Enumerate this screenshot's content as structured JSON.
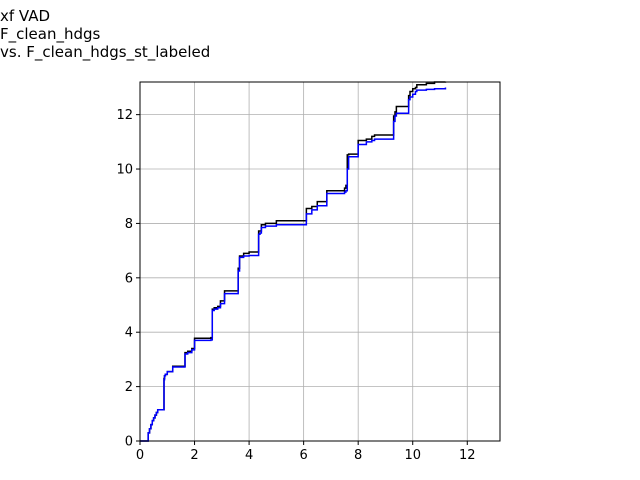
{
  "chart_data": {
    "type": "line",
    "title": [
      "xf VAD",
      "F_clean_hdgs",
      "vs. F_clean_hdgs_st_labeled"
    ],
    "xlabel": "",
    "ylabel": "",
    "xlim": [
      0,
      13.2
    ],
    "ylim": [
      0,
      13.2
    ],
    "xticks": [
      0,
      2,
      4,
      6,
      8,
      10,
      12
    ],
    "yticks": [
      0,
      2,
      4,
      6,
      8,
      10,
      12
    ],
    "xtick_labels": [
      "0",
      "2",
      "4",
      "6",
      "8",
      "10",
      "12"
    ],
    "ytick_labels": [
      "0",
      "2",
      "4",
      "6",
      "8",
      "10",
      "12"
    ],
    "grid": true,
    "legend": false,
    "step": true,
    "series": [
      {
        "color": "#000000",
        "x": [
          0.0,
          0.3,
          0.35,
          0.4,
          0.45,
          0.5,
          0.55,
          0.6,
          0.65,
          0.72,
          0.88,
          0.9,
          0.93,
          1.0,
          1.2,
          1.6,
          1.65,
          1.75,
          1.9,
          2.0,
          2.6,
          2.65,
          2.72,
          2.85,
          2.95,
          3.1,
          3.5,
          3.6,
          3.65,
          3.8,
          4.0,
          4.35,
          4.4,
          4.45,
          4.6,
          5.0,
          6.1,
          6.3,
          6.5,
          6.85,
          7.5,
          7.55,
          7.6,
          7.65,
          8.0,
          8.3,
          8.5,
          8.6,
          9.3,
          9.35,
          9.4,
          9.85,
          9.9,
          10.0,
          10.1,
          10.15,
          10.5,
          10.8,
          11.2
        ],
        "y": [
          0.0,
          0.3,
          0.45,
          0.6,
          0.75,
          0.85,
          0.95,
          1.05,
          1.15,
          1.15,
          2.3,
          2.4,
          2.45,
          2.55,
          2.75,
          2.75,
          3.25,
          3.3,
          3.4,
          3.78,
          3.8,
          4.85,
          4.9,
          4.95,
          5.15,
          5.52,
          5.52,
          6.35,
          6.8,
          6.9,
          6.95,
          7.72,
          7.72,
          7.95,
          8.0,
          8.1,
          8.55,
          8.62,
          8.8,
          9.2,
          9.3,
          9.4,
          10.52,
          10.55,
          11.05,
          11.1,
          11.2,
          11.25,
          11.95,
          12.1,
          12.3,
          12.7,
          12.85,
          12.95,
          13.0,
          13.1,
          13.15,
          13.2,
          13.22
        ]
      },
      {
        "color": "#0000ff",
        "x": [
          0.0,
          0.3,
          0.35,
          0.4,
          0.45,
          0.5,
          0.55,
          0.6,
          0.65,
          0.72,
          0.88,
          0.9,
          0.93,
          1.0,
          1.2,
          1.6,
          1.65,
          1.75,
          1.9,
          2.0,
          2.6,
          2.65,
          2.72,
          2.85,
          2.95,
          3.1,
          3.5,
          3.6,
          3.65,
          3.8,
          4.0,
          4.35,
          4.4,
          4.45,
          4.6,
          5.0,
          6.1,
          6.3,
          6.5,
          6.85,
          7.5,
          7.55,
          7.6,
          7.65,
          8.0,
          8.3,
          8.5,
          8.6,
          9.3,
          9.35,
          9.4,
          9.85,
          9.9,
          10.0,
          10.1,
          10.15,
          10.5,
          10.8,
          11.2
        ],
        "y": [
          0.0,
          0.3,
          0.45,
          0.6,
          0.75,
          0.85,
          0.95,
          1.05,
          1.15,
          1.15,
          2.25,
          2.4,
          2.45,
          2.55,
          2.72,
          2.72,
          3.2,
          3.25,
          3.35,
          3.7,
          3.72,
          4.8,
          4.85,
          4.9,
          5.05,
          5.42,
          5.42,
          6.25,
          6.75,
          6.8,
          6.82,
          7.6,
          7.65,
          7.85,
          7.9,
          7.95,
          8.35,
          8.5,
          8.65,
          9.1,
          9.15,
          9.2,
          10.0,
          10.45,
          10.9,
          11.0,
          11.05,
          11.1,
          11.75,
          11.95,
          12.05,
          12.55,
          12.65,
          12.75,
          12.85,
          12.9,
          12.93,
          12.95,
          13.0
        ]
      }
    ]
  }
}
